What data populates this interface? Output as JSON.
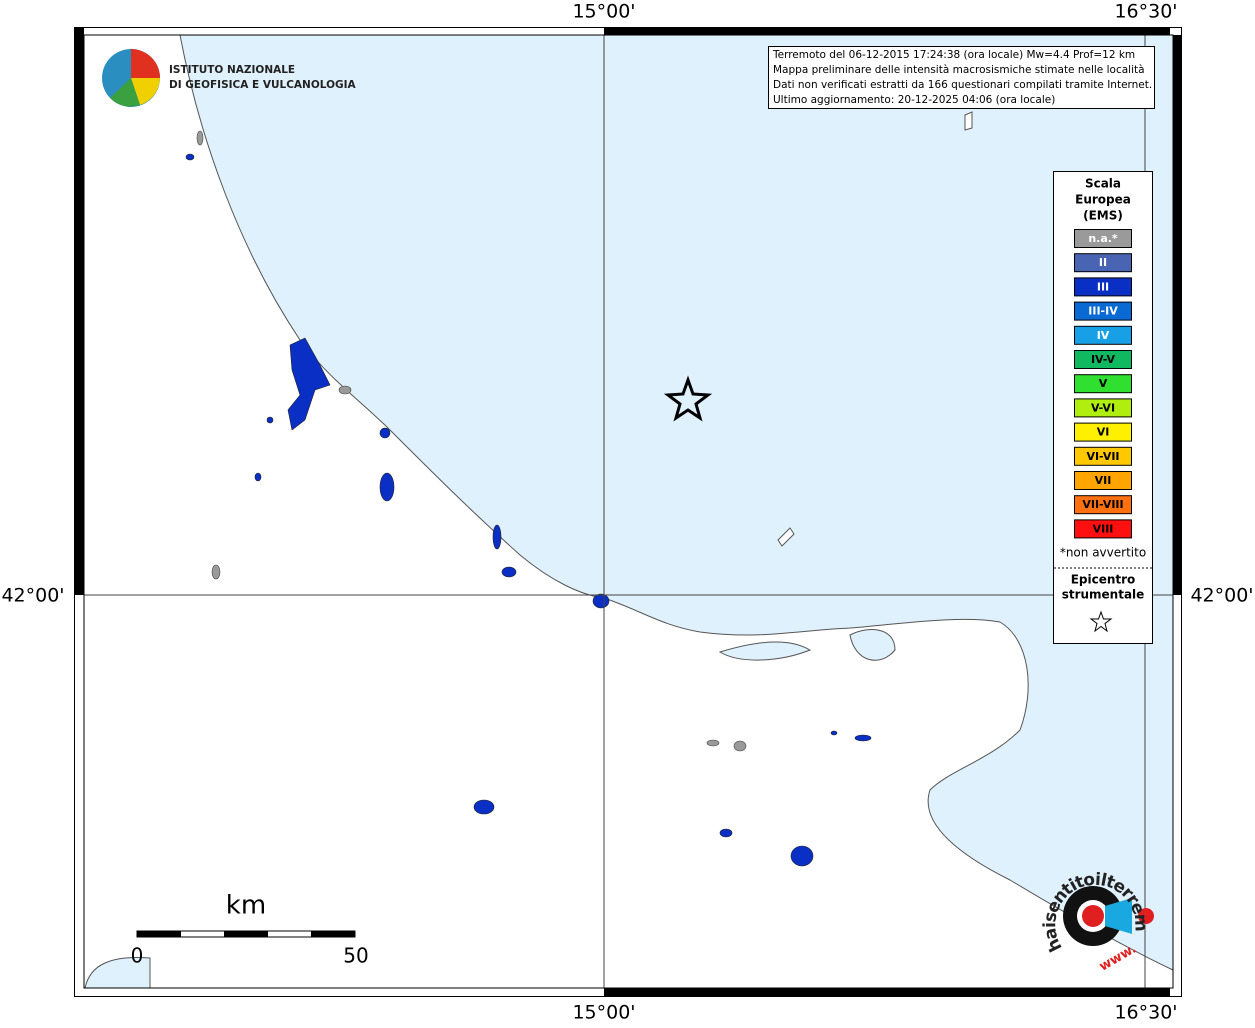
{
  "map": {
    "lon_labels": {
      "top": [
        "15°00'",
        "16°30'"
      ],
      "bottom": [
        "15°00'",
        "16°30'"
      ]
    },
    "lat_labels": {
      "left": "42°00'",
      "right": "42°00'"
    },
    "info": [
      "Terremoto del 06-12-2015 17:24:38 (ora locale) Mw=4.4 Prof=12 km",
      "Mappa preliminare delle intensità macrosismiche stimate nelle località",
      "Dati non verificati estratti da 166 questionari compilati tramite Internet.",
      "Ultimo aggiornamento: 20-12-2025 04:06 (ora locale)"
    ],
    "logo": [
      "ISTITUTO NAZIONALE",
      "DI GEOFISICA E VULCANOLOGIA"
    ],
    "legend": {
      "title": [
        "Scala",
        "Europea",
        "(EMS)"
      ],
      "levels": [
        {
          "label": "n.a.*",
          "color": "#9a9a9a"
        },
        {
          "label": "II",
          "color": "#4a64b4"
        },
        {
          "label": "III",
          "color": "#0a2fc4"
        },
        {
          "label": "III-IV",
          "color": "#0a6ad4"
        },
        {
          "label": "IV",
          "color": "#18a0e6"
        },
        {
          "label": "IV-V",
          "color": "#10b860"
        },
        {
          "label": "V",
          "color": "#30e030"
        },
        {
          "label": "V-VI",
          "color": "#b0ee10"
        },
        {
          "label": "VI",
          "color": "#fff000"
        },
        {
          "label": "VI-VII",
          "color": "#ffc800"
        },
        {
          "label": "VII",
          "color": "#ffa400"
        },
        {
          "label": "VII-VIII",
          "color": "#ff7010"
        },
        {
          "label": "VIII",
          "color": "#ff1010"
        }
      ],
      "note": "*non avvertito",
      "epicenter": [
        "Epicentro",
        "strumentale"
      ]
    },
    "scale": {
      "unit": "km",
      "labels": [
        "0",
        "50"
      ]
    },
    "badge": {
      "site": "haisentitoilterremoto.it",
      "www": "www."
    }
  }
}
